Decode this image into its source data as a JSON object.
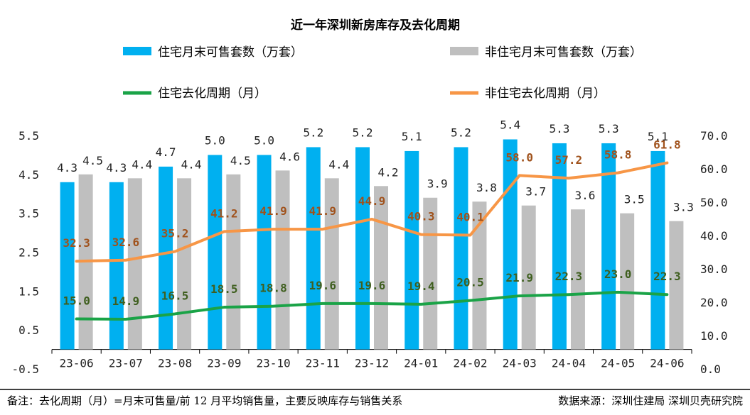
{
  "colors": {
    "res_bar": "#00b0f0",
    "nonres_bar": "#bfbfbf",
    "res_line": "#1aa347",
    "nonres_line": "#f79646",
    "res_line_label": "#3f5f1f",
    "nonres_line_label": "#a0521c",
    "axis": "#000000"
  },
  "legend": {
    "res_bar": "住宅月末可售套数（万套）",
    "nonres_bar": "非住宅月末可售套数（万套）",
    "res_line": "住宅去化周期（月）",
    "nonres_line": "非住宅去化周期（月）"
  },
  "footnote": {
    "note": "备注：去化周期（月）=月末可售量/前 12 月平均销售量，主要反映库存与销售关系",
    "source": "数据来源：深圳住建局 深圳贝壳研究院"
  },
  "chart_data": {
    "type": "bar",
    "title": "近一年深圳新房库存及去化周期",
    "categories": [
      "23-06",
      "23-07",
      "23-08",
      "23-09",
      "23-10",
      "23-11",
      "23-12",
      "24-01",
      "24-02",
      "24-03",
      "24-04",
      "24-05",
      "24-06"
    ],
    "left_axis": {
      "ylim": [
        -0.5,
        5.5
      ],
      "ticks": [
        "5.5",
        "4.5",
        "3.5",
        "2.5",
        "1.5",
        "0.5",
        "-0.5"
      ],
      "tick_values": [
        5.5,
        4.5,
        3.5,
        2.5,
        1.5,
        0.5,
        -0.5
      ]
    },
    "right_axis": {
      "ylim": [
        0,
        70
      ],
      "ticks": [
        "70.0",
        "60.0",
        "50.0",
        "40.0",
        "30.0",
        "20.0",
        "10.0",
        "0.0"
      ],
      "tick_values": [
        70,
        60,
        50,
        40,
        30,
        20,
        10,
        0
      ]
    },
    "series": [
      {
        "name": "住宅月末可售套数（万套）",
        "type": "bar",
        "axis": "left",
        "values": [
          4.3,
          4.3,
          4.7,
          5.0,
          5.0,
          5.2,
          5.2,
          5.1,
          5.2,
          5.4,
          5.3,
          5.3,
          5.1
        ],
        "labels": [
          "4.3",
          "4.3",
          "4.7",
          "5.0",
          "5.0",
          "5.2",
          "5.2",
          "5.1",
          "5.2",
          "5.4",
          "5.3",
          "5.3",
          "5.1"
        ]
      },
      {
        "name": "非住宅月末可售套数（万套）",
        "type": "bar",
        "axis": "left",
        "values": [
          4.5,
          4.4,
          4.4,
          4.5,
          4.6,
          4.4,
          4.2,
          3.9,
          3.8,
          3.7,
          3.6,
          3.5,
          3.3
        ],
        "labels": [
          "4.5",
          "4.4",
          "4.4",
          "4.5",
          "4.6",
          "4.4",
          "4.2",
          "3.9",
          "3.8",
          "3.7",
          "3.6",
          "3.5",
          "3.3"
        ]
      },
      {
        "name": "住宅去化周期（月）",
        "type": "line",
        "axis": "right",
        "values": [
          15.0,
          14.9,
          16.5,
          18.5,
          18.8,
          19.6,
          19.6,
          19.4,
          20.5,
          21.9,
          22.3,
          23.0,
          22.3
        ],
        "labels": [
          "15.0",
          "14.9",
          "16.5",
          "18.5",
          "18.8",
          "19.6",
          "19.6",
          "19.4",
          "20.5",
          "21.9",
          "22.3",
          "23.0",
          "22.3"
        ]
      },
      {
        "name": "非住宅去化周期（月）",
        "type": "line",
        "axis": "right",
        "values": [
          32.3,
          32.6,
          35.2,
          41.2,
          41.9,
          41.9,
          44.9,
          40.3,
          40.1,
          58.0,
          57.2,
          58.8,
          61.8
        ],
        "labels": [
          "32.3",
          "32.6",
          "35.2",
          "41.2",
          "41.9",
          "41.9",
          "44.9",
          "40.3",
          "40.1",
          "58.0",
          "57.2",
          "58.8",
          "61.8"
        ]
      }
    ],
    "grid": false,
    "legend_position": "top"
  }
}
